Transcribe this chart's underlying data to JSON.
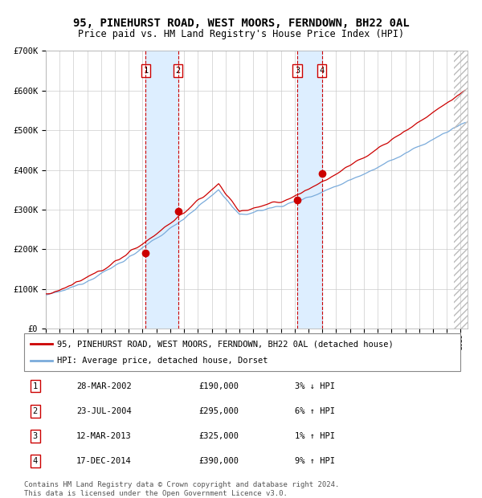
{
  "title": "95, PINEHURST ROAD, WEST MOORS, FERNDOWN, BH22 0AL",
  "subtitle": "Price paid vs. HM Land Registry's House Price Index (HPI)",
  "ylim": [
    0,
    700000
  ],
  "yticks": [
    0,
    100000,
    200000,
    300000,
    400000,
    500000,
    600000,
    700000
  ],
  "ytick_labels": [
    "£0",
    "£100K",
    "£200K",
    "£300K",
    "£400K",
    "£500K",
    "£600K",
    "£700K"
  ],
  "xlim_start": 1995.0,
  "xlim_end": 2025.5,
  "transactions": [
    {
      "num": 1,
      "date_str": "28-MAR-2002",
      "year": 2002.23,
      "price": 190000,
      "hpi_pct": "3% ↓ HPI"
    },
    {
      "num": 2,
      "date_str": "23-JUL-2004",
      "year": 2004.56,
      "price": 295000,
      "hpi_pct": "6% ↑ HPI"
    },
    {
      "num": 3,
      "date_str": "12-MAR-2013",
      "year": 2013.19,
      "price": 325000,
      "hpi_pct": "1% ↑ HPI"
    },
    {
      "num": 4,
      "date_str": "17-DEC-2014",
      "year": 2014.96,
      "price": 390000,
      "hpi_pct": "9% ↑ HPI"
    }
  ],
  "hpi_line_color": "#7aabdb",
  "price_line_color": "#cc0000",
  "marker_color": "#cc0000",
  "vspan_color": "#ddeeff",
  "vline_color": "#cc0000",
  "grid_color": "#cccccc",
  "bg_color": "#ffffff",
  "legend_line1": "95, PINEHURST ROAD, WEST MOORS, FERNDOWN, BH22 0AL (detached house)",
  "legend_line2": "HPI: Average price, detached house, Dorset",
  "footer": "Contains HM Land Registry data © Crown copyright and database right 2024.\nThis data is licensed under the Open Government Licence v3.0.",
  "title_fontsize": 10,
  "subtitle_fontsize": 8.5,
  "tick_fontsize": 7.5,
  "legend_fontsize": 7.5,
  "footer_fontsize": 6.5
}
